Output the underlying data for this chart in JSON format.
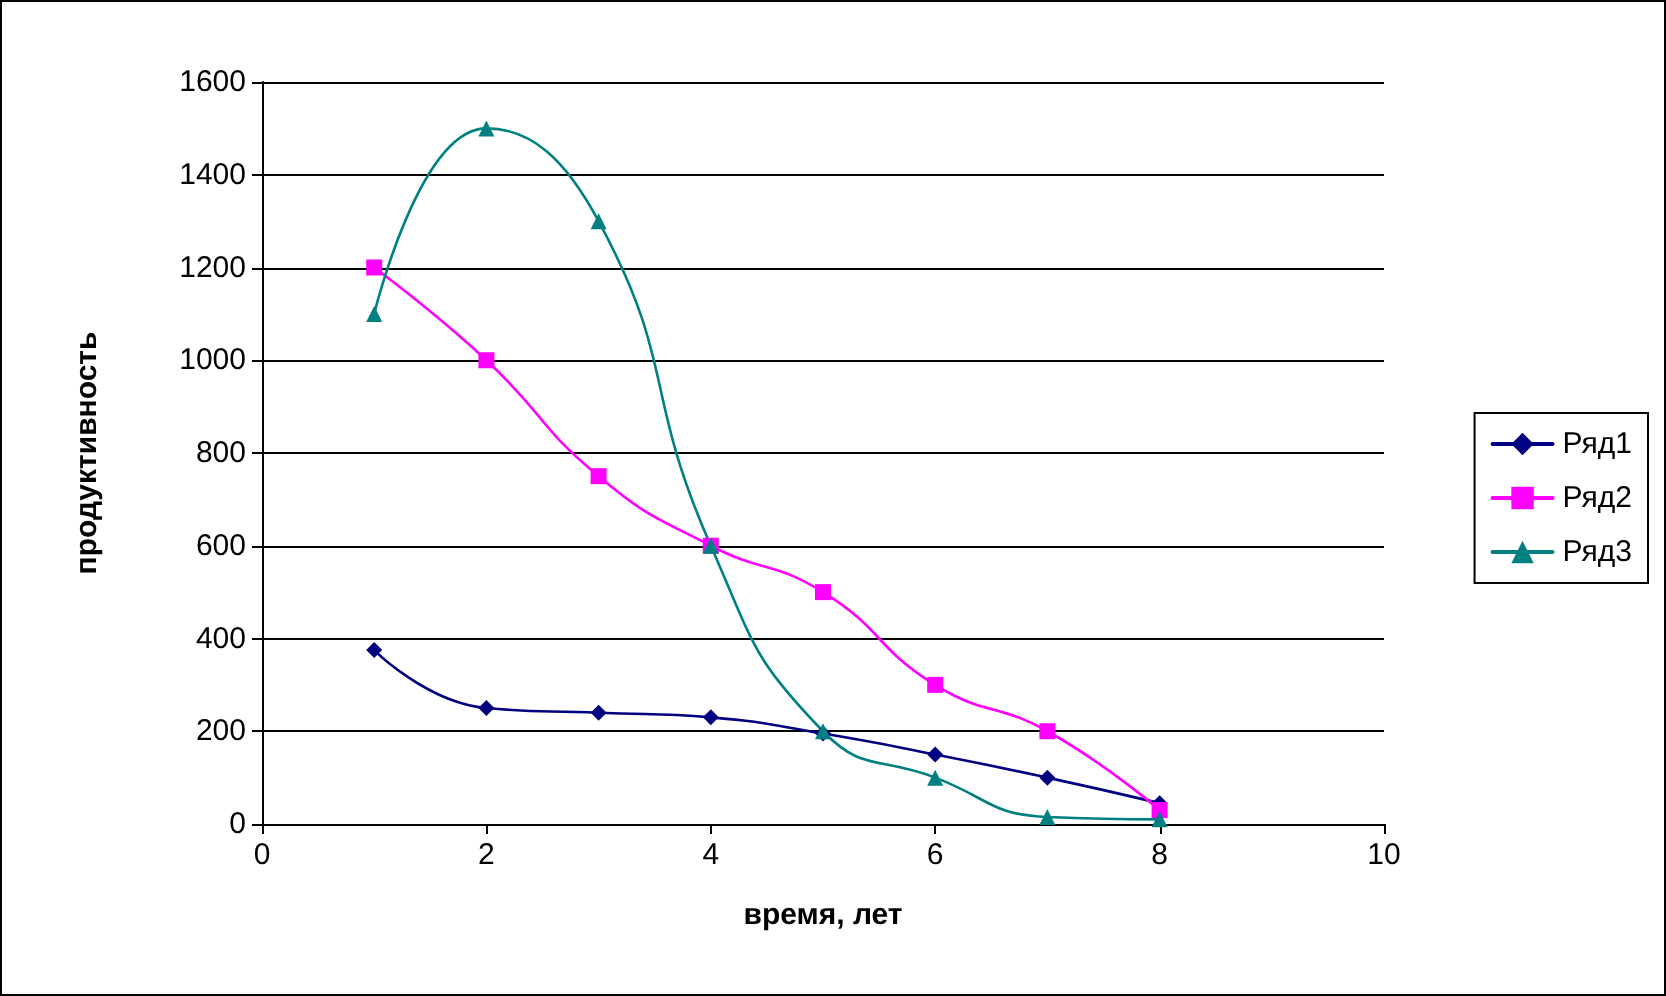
{
  "chart_data": {
    "type": "line",
    "xlabel": "время, лет",
    "ylabel": "продуктивность",
    "x": [
      1,
      2,
      3,
      4,
      5,
      6,
      7,
      8
    ],
    "series": [
      {
        "name": "Ряд1",
        "color": "#000080",
        "marker": "diamond",
        "values": [
          375,
          250,
          240,
          230,
          195,
          150,
          100,
          45
        ]
      },
      {
        "name": "Ряд2",
        "color": "#ff00ff",
        "marker": "square",
        "values": [
          1200,
          1000,
          750,
          600,
          500,
          300,
          200,
          30
        ]
      },
      {
        "name": "Ряд3",
        "color": "#008080",
        "marker": "triangle",
        "values": [
          1100,
          1500,
          1300,
          600,
          200,
          100,
          15,
          10
        ]
      }
    ],
    "xlim": [
      0,
      10
    ],
    "xticks": [
      0,
      2,
      4,
      6,
      8,
      10
    ],
    "ylim": [
      0,
      1600
    ],
    "yticks": [
      0,
      200,
      400,
      600,
      800,
      1000,
      1200,
      1400,
      1600
    ],
    "grid": "y",
    "legend": "right",
    "line_style": "solid"
  }
}
